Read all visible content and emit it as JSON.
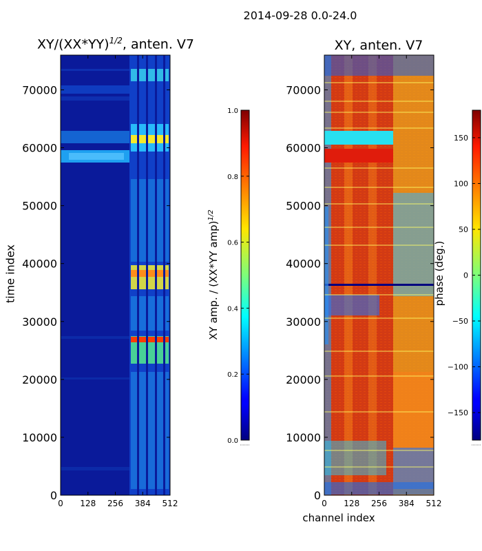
{
  "figure": {
    "suptitle": "2014-09-28 0.0-24.0"
  },
  "chart_data": [
    {
      "type": "heatmap",
      "title_text": "XY/(XX*YY)",
      "title_exponent": "1/2",
      "title_suffix": ", anten. V7",
      "ylabel": "time index",
      "xlabel": "",
      "xlim": [
        0,
        512
      ],
      "ylim": [
        0,
        76000
      ],
      "xticks": [
        0,
        128,
        256,
        384,
        512
      ],
      "xtick_labels": [
        "0",
        "128",
        "256",
        "384",
        "512"
      ],
      "yticks": [
        0,
        10000,
        20000,
        30000,
        40000,
        50000,
        60000,
        70000
      ],
      "ytick_labels": [
        "0",
        "10000",
        "20000",
        "30000",
        "40000",
        "50000",
        "60000",
        "70000"
      ],
      "colormap": "jet",
      "colorbar": {
        "label_text": "XY amp. / (XX*YY amp)",
        "label_exponent": "1/2",
        "range": [
          0.0,
          1.0
        ],
        "ticks": [
          0.0,
          0.2,
          0.4,
          0.6,
          0.8,
          1.0
        ],
        "tick_labels": [
          "0.0",
          "0.2",
          "0.4",
          "0.6",
          "0.8",
          "1.0"
        ]
      }
    },
    {
      "type": "heatmap",
      "title_text": "XY, anten. V7",
      "ylabel": "",
      "xlabel": "channel index",
      "xlim": [
        0,
        512
      ],
      "ylim": [
        0,
        76000
      ],
      "xticks": [
        0,
        128,
        256,
        384,
        512
      ],
      "xtick_labels": [
        "0",
        "128",
        "256",
        "384",
        "512"
      ],
      "yticks": [
        0,
        10000,
        20000,
        30000,
        40000,
        50000,
        60000,
        70000
      ],
      "ytick_labels": [
        "0",
        "10000",
        "20000",
        "30000",
        "40000",
        "50000",
        "60000",
        "70000"
      ],
      "colormap": "jet",
      "colorbar": {
        "label_text": "phase (deg.)",
        "range": [
          -180,
          180
        ],
        "ticks": [
          -150,
          -100,
          -50,
          0,
          50,
          100,
          150
        ],
        "tick_labels": [
          "−150",
          "−100",
          "−50",
          "0",
          "50",
          "100",
          "150"
        ]
      }
    }
  ]
}
